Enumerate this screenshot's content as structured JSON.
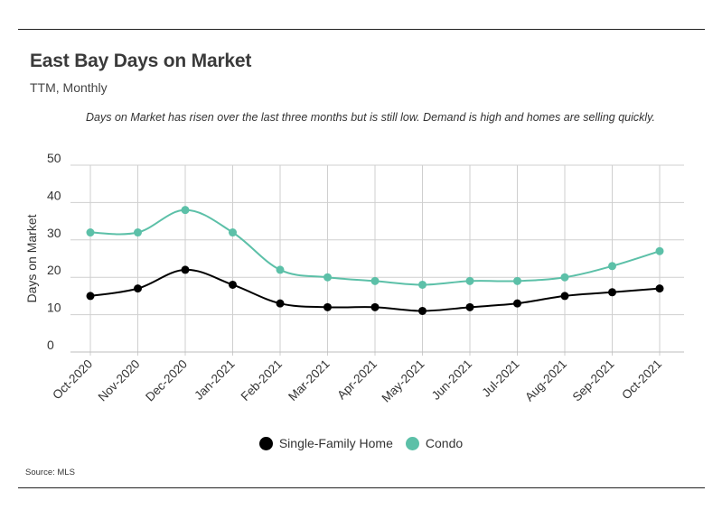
{
  "header": {
    "title": "East Bay Days on Market",
    "subtitle": "TTM, Monthly",
    "note": "Days on Market has risen over the last three months but is still low. Demand is high and homes are selling quickly."
  },
  "footer": {
    "source": "Source:  MLS"
  },
  "chart_data": {
    "type": "line",
    "title": "East Bay Days on Market",
    "subtitle": "TTM, Monthly",
    "xlabel": "",
    "ylabel": "Days on Market",
    "ylim": [
      0,
      50
    ],
    "yticks": [
      0,
      10,
      20,
      30,
      40,
      50
    ],
    "grid": true,
    "legend_position": "bottom",
    "categories": [
      "Oct-2020",
      "Nov-2020",
      "Dec-2020",
      "Jan-2021",
      "Feb-2021",
      "Mar-2021",
      "Apr-2021",
      "May-2021",
      "Jun-2021",
      "Jul-2021",
      "Aug-2021",
      "Sep-2021",
      "Oct-2021"
    ],
    "series": [
      {
        "name": "Single-Family Home",
        "color": "#000000",
        "values": [
          15,
          17,
          22,
          18,
          13,
          12,
          12,
          11,
          12,
          13,
          15,
          16,
          17
        ]
      },
      {
        "name": "Condo",
        "color": "#5cc0a8",
        "values": [
          32,
          32,
          38,
          32,
          22,
          20,
          19,
          18,
          19,
          19,
          20,
          23,
          27
        ]
      }
    ]
  }
}
